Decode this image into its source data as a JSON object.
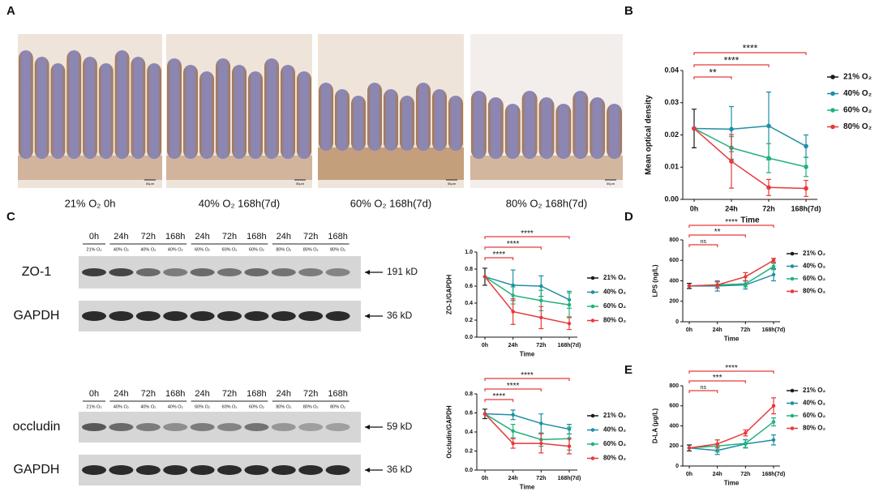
{
  "panel_labels": [
    "A",
    "B",
    "C",
    "D",
    "E"
  ],
  "histology": {
    "captions": [
      "21% O₂  0h",
      "40% O₂  168h(7d)",
      "60% O₂  168h(7d)",
      "80% O₂  168h(7d)"
    ],
    "scale_bar": "50μm"
  },
  "blots": [
    {
      "lanes": [
        "0h",
        "24h",
        "72h",
        "168h",
        "24h",
        "72h",
        "168h",
        "24h",
        "72h",
        "168h"
      ],
      "conditions": [
        "21% O₂",
        "40% O₂",
        "40% O₂",
        "40% O₂",
        "60% O₂",
        "60% O₂",
        "60% O₂",
        "80% O₂",
        "80% O₂",
        "80% O₂"
      ],
      "rows": [
        {
          "label": "ZO-1",
          "weight": "191 kD"
        },
        {
          "label": "GAPDH",
          "weight": "36 kD"
        }
      ]
    },
    {
      "lanes": [
        "0h",
        "24h",
        "72h",
        "168h",
        "24h",
        "72h",
        "168h",
        "24h",
        "72h",
        "168h"
      ],
      "conditions": [
        "21% O₂",
        "40% O₂",
        "40% O₂",
        "40% O₂",
        "60% O₂",
        "60% O₂",
        "60% O₂",
        "80% O₂",
        "80% O₂",
        "80% O₂"
      ],
      "rows": [
        {
          "label": "occludin",
          "weight": "59 kD"
        },
        {
          "label": "GAPDH",
          "weight": "36 kD"
        }
      ]
    }
  ],
  "chart_data": [
    {
      "type": "line",
      "ylabel": "Mean optical density",
      "xlabel": "Time",
      "categories": [
        "0h",
        "24h",
        "72h",
        "168h(7d)"
      ],
      "ylim": [
        0,
        0.04
      ],
      "yticks": [
        {
          "value": 0,
          "label": "0.00"
        },
        0.01,
        0.02,
        0.03,
        0.04
      ],
      "annotation_color": "#e8393a",
      "annotations": [
        {
          "text": "**",
          "x": [
            "0h",
            "24h"
          ]
        },
        {
          "text": "****",
          "x": [
            "0h",
            "72h"
          ]
        },
        {
          "text": "****",
          "x": [
            "0h",
            "168h(7d)"
          ]
        }
      ],
      "series": [
        {
          "name": "21% O₂",
          "color": "#1a1a1a",
          "values": [
            0.022,
            null,
            null,
            null
          ],
          "errors": [
            0.006,
            null,
            null,
            null
          ]
        },
        {
          "name": "40% O₂",
          "color": "#1f8fa6",
          "values": [
            0.022,
            0.0218,
            0.0228,
            0.0165
          ],
          "errors": [
            null,
            0.007,
            0.0105,
            0.0035
          ]
        },
        {
          "name": "60% O₂",
          "color": "#22b27a",
          "values": [
            0.022,
            0.016,
            0.0128,
            0.0101
          ],
          "errors": [
            null,
            0.0035,
            0.0045,
            0.003
          ]
        },
        {
          "name": "80% O₂",
          "color": "#e8393a",
          "values": [
            0.022,
            0.0118,
            0.0037,
            0.0034
          ],
          "errors": [
            null,
            0.0083,
            0.0025,
            0.0025
          ]
        }
      ]
    },
    {
      "type": "line",
      "ylabel": "ZO-1/GAPDH",
      "xlabel": "Time",
      "categories": [
        "0h",
        "24h",
        "72h",
        "168h(7d)"
      ],
      "ylim": [
        0,
        1
      ],
      "yticks": [
        {
          "value": 0,
          "label": "0.0"
        },
        0.2,
        0.4,
        0.6,
        0.8,
        {
          "value": 1,
          "label": "1.0"
        }
      ],
      "annotation_color": "#e8393a",
      "annotations": [
        {
          "text": "****",
          "x": [
            "0h",
            "24h"
          ]
        },
        {
          "text": "****",
          "x": [
            "0h",
            "72h"
          ]
        },
        {
          "text": "****",
          "x": [
            "0h",
            "168h(7d)"
          ]
        }
      ],
      "series": [
        {
          "name": "21% O₂",
          "color": "#1a1a1a",
          "values": [
            0.71,
            null,
            null,
            null
          ],
          "errors": [
            0.1,
            null,
            null,
            null
          ]
        },
        {
          "name": "40% O₂",
          "color": "#1f8fa6",
          "values": [
            0.71,
            0.61,
            0.6,
            0.44
          ],
          "errors": [
            null,
            0.18,
            0.12,
            0.1
          ]
        },
        {
          "name": "60% O₂",
          "color": "#22b27a",
          "values": [
            0.71,
            0.49,
            0.43,
            0.38
          ],
          "errors": [
            null,
            0.1,
            0.12,
            0.14
          ]
        },
        {
          "name": "80% O₂",
          "color": "#e8393a",
          "values": [
            0.71,
            0.3,
            0.23,
            0.16
          ],
          "errors": [
            null,
            0.15,
            0.13,
            0.07
          ]
        }
      ]
    },
    {
      "type": "line",
      "ylabel": "Occludin/GAPDH",
      "xlabel": "Time",
      "categories": [
        "0h",
        "24h",
        "72h",
        "168h(7d)"
      ],
      "ylim": [
        0,
        0.8
      ],
      "yticks": [
        {
          "value": 0,
          "label": "0.0"
        },
        0.2,
        0.4,
        0.6,
        0.8
      ],
      "annotation_color": "#e8393a",
      "annotations": [
        {
          "text": "****",
          "x": [
            "0h",
            "24h"
          ]
        },
        {
          "text": "****",
          "x": [
            "0h",
            "72h"
          ]
        },
        {
          "text": "****",
          "x": [
            "0h",
            "168h(7d)"
          ]
        }
      ],
      "series": [
        {
          "name": "21% O₂",
          "color": "#1a1a1a",
          "values": [
            0.59,
            null,
            null,
            null
          ],
          "errors": [
            0.05,
            null,
            null,
            null
          ]
        },
        {
          "name": "40% O₂",
          "color": "#1f8fa6",
          "values": [
            0.59,
            0.58,
            0.49,
            0.43
          ],
          "errors": [
            null,
            0.05,
            0.1,
            0.05
          ]
        },
        {
          "name": "60% O₂",
          "color": "#22b27a",
          "values": [
            0.59,
            0.41,
            0.32,
            0.33
          ],
          "errors": [
            null,
            0.07,
            0.07,
            0.12
          ]
        },
        {
          "name": "80% O₂",
          "color": "#e8393a",
          "values": [
            0.59,
            0.28,
            0.28,
            0.25
          ],
          "errors": [
            null,
            0.05,
            0.1,
            0.08
          ]
        }
      ]
    },
    {
      "type": "line",
      "ylabel": "LPS (ng/L)",
      "xlabel": "Time",
      "categories": [
        "0h",
        "24h",
        "72h",
        "168h(7d)"
      ],
      "ylim": [
        0,
        800
      ],
      "yticks": [
        0,
        200,
        400,
        600,
        800
      ],
      "annotation_color": "#e8393a",
      "annotations": [
        {
          "text": "ns",
          "x": [
            "0h",
            "24h"
          ]
        },
        {
          "text": "**",
          "x": [
            "0h",
            "72h"
          ]
        },
        {
          "text": "****",
          "x": [
            "0h",
            "168h(7d)"
          ]
        }
      ],
      "series": [
        {
          "name": "21% O₂",
          "color": "#1a1a1a",
          "values": [
            350,
            null,
            null,
            null
          ],
          "errors": [
            25,
            null,
            null,
            null
          ]
        },
        {
          "name": "40% O₂",
          "color": "#1f8fa6",
          "values": [
            350,
            350,
            360,
            460
          ],
          "errors": [
            null,
            50,
            40,
            60
          ]
        },
        {
          "name": "60% O₂",
          "color": "#22b27a",
          "values": [
            350,
            360,
            370,
            540
          ],
          "errors": [
            null,
            30,
            30,
            30
          ]
        },
        {
          "name": "80% O₂",
          "color": "#e8393a",
          "values": [
            350,
            360,
            440,
            600
          ],
          "errors": [
            null,
            30,
            40,
            20
          ]
        }
      ]
    },
    {
      "type": "line",
      "ylabel": "D-LA (μg/L)",
      "xlabel": "Time",
      "categories": [
        "0h",
        "24h",
        "72h",
        "168h(7d)"
      ],
      "ylim": [
        0,
        800
      ],
      "yticks": [
        0,
        200,
        400,
        600,
        800
      ],
      "annotation_color": "#e8393a",
      "annotations": [
        {
          "text": "ns",
          "x": [
            "0h",
            "24h"
          ]
        },
        {
          "text": "***",
          "x": [
            "0h",
            "72h"
          ]
        },
        {
          "text": "****",
          "x": [
            "0h",
            "168h(7d)"
          ]
        }
      ],
      "series": [
        {
          "name": "21% O₂",
          "color": "#1a1a1a",
          "values": [
            180,
            null,
            null,
            null
          ],
          "errors": [
            30,
            null,
            null,
            null
          ]
        },
        {
          "name": "40% O₂",
          "color": "#1f8fa6",
          "values": [
            180,
            155,
            220,
            260
          ],
          "errors": [
            null,
            40,
            40,
            50
          ]
        },
        {
          "name": "60% O₂",
          "color": "#22b27a",
          "values": [
            180,
            200,
            225,
            440
          ],
          "errors": [
            null,
            60,
            40,
            40
          ]
        },
        {
          "name": "80% O₂",
          "color": "#e8393a",
          "values": [
            180,
            220,
            330,
            600
          ],
          "errors": [
            null,
            40,
            30,
            80
          ]
        }
      ]
    }
  ]
}
